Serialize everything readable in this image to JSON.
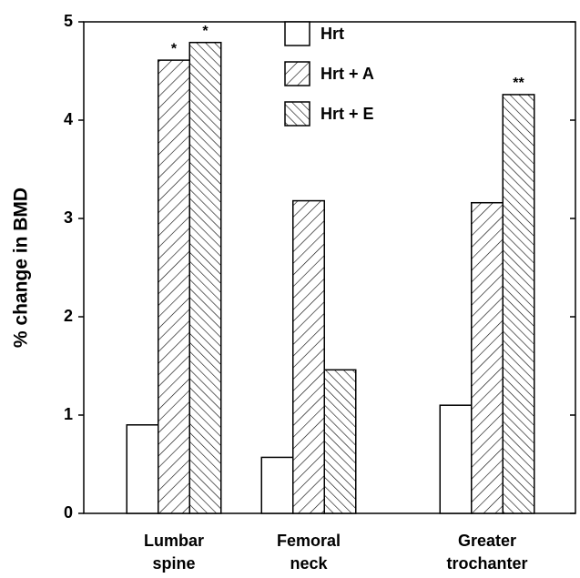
{
  "chart_data": {
    "type": "bar",
    "ylabel": "% change in BMD",
    "categories": [
      "Lumbar spine",
      "Femoral neck",
      "Greater trochanter"
    ],
    "series": [
      {
        "name": "Hrt",
        "color": "#ffffff",
        "pattern": "none",
        "values": [
          0.9,
          0.57,
          1.1
        ]
      },
      {
        "name": "Hrt + A",
        "color": "#ffffff",
        "pattern": "forward-diagonal",
        "values": [
          4.61,
          3.18,
          3.16
        ]
      },
      {
        "name": "Hrt + E",
        "color": "#ffffff",
        "pattern": "backward-diagonal",
        "values": [
          4.79,
          1.46,
          4.26
        ],
        "significance": [
          "*",
          null,
          "**"
        ]
      }
    ],
    "series_significance_A": [
      "*",
      null,
      null
    ],
    "ylim": [
      0,
      5
    ],
    "yticks": [
      0,
      1,
      2,
      3,
      4,
      5
    ],
    "grid": false,
    "legend": "top"
  }
}
